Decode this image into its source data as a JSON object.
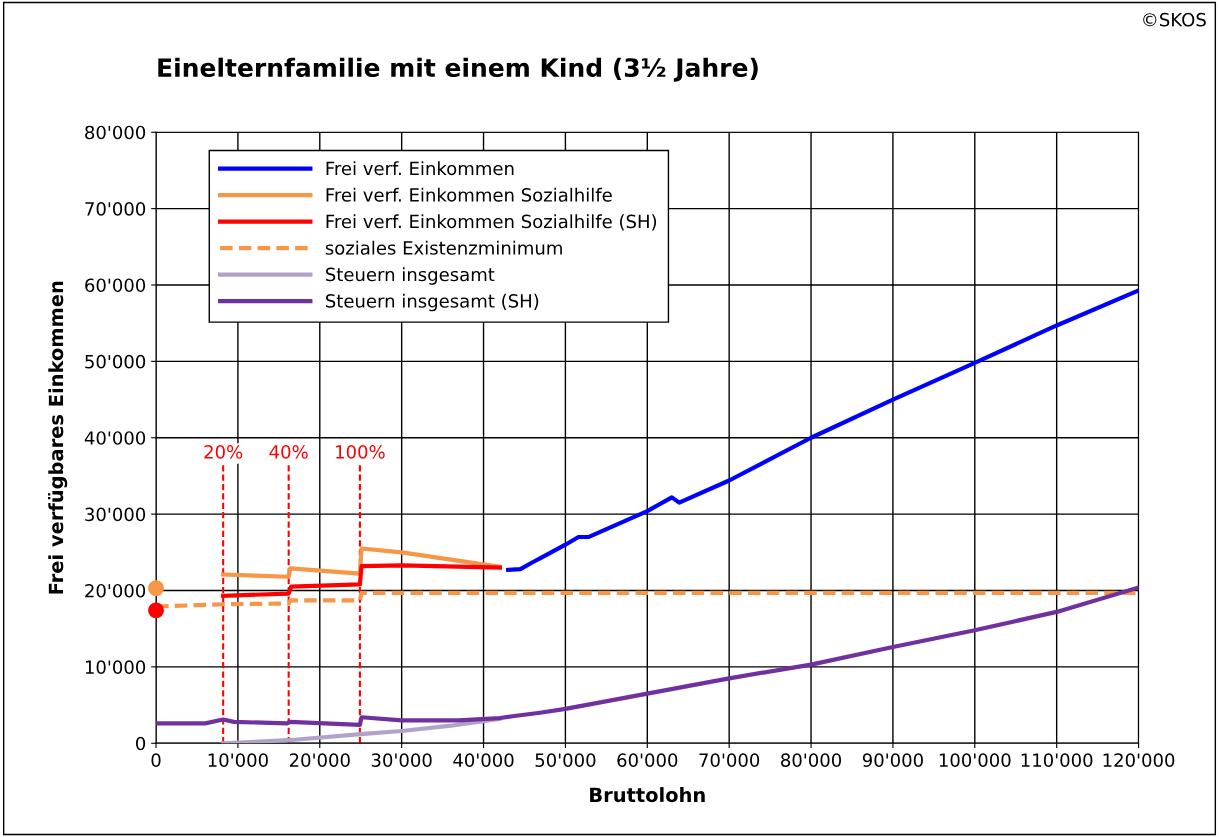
{
  "chart_data": {
    "type": "line",
    "title": "Einelternfamilie mit einem Kind (3½ Jahre)",
    "xlabel": "Bruttolohn",
    "ylabel": "Frei verfügbares Einkommen",
    "annotations": [
      "©SKOS",
      "20%",
      "40%",
      "100%"
    ],
    "xlim": [
      0,
      120000
    ],
    "ylim": [
      0,
      80000
    ],
    "xticks": [
      0,
      {
        "value": 10000,
        "label": "10'000"
      },
      {
        "value": 20000,
        "label": "20'000"
      },
      {
        "value": 30000,
        "label": "30'000"
      },
      {
        "value": 40000,
        "label": "40'000"
      },
      {
        "value": 50000,
        "label": "50'000"
      },
      {
        "value": 60000,
        "label": "60'000"
      },
      {
        "value": 70000,
        "label": "70'000"
      },
      {
        "value": 80000,
        "label": "80'000"
      },
      {
        "value": 90000,
        "label": "90'000"
      },
      {
        "value": 100000,
        "label": "100'000"
      },
      {
        "value": 110000,
        "label": "110'000"
      },
      {
        "value": 120000,
        "label": "120'000"
      }
    ],
    "yticks": [
      0,
      {
        "value": 10000,
        "label": "10'000"
      },
      {
        "value": 20000,
        "label": "20'000"
      },
      {
        "value": 30000,
        "label": "30'000"
      },
      {
        "value": 40000,
        "label": "40'000"
      },
      {
        "value": 50000,
        "label": "50'000"
      },
      {
        "value": 60000,
        "label": "60'000"
      },
      {
        "value": 70000,
        "label": "70'000"
      },
      {
        "value": 80000,
        "label": "80'000"
      }
    ],
    "grid": true,
    "legend": "top left",
    "series": [
      {
        "name": "Frei verf. Einkommen",
        "color": "#0000ff",
        "x": [
          43000,
          44500,
          46000,
          46900,
          50000,
          51600,
          52800,
          60000,
          63000,
          63900,
          70000,
          80000,
          90000,
          100000,
          110000,
          120000
        ],
        "values": [
          22700,
          22800,
          23700,
          24200,
          26000,
          27000,
          27000,
          30400,
          32200,
          31500,
          34400,
          40000,
          45000,
          49800,
          54700,
          59300
        ]
      },
      {
        "name": "Frei verf. Einkommen Sozialhilfe",
        "color": "#f79646",
        "x": [
          8200,
          16200,
          16400,
          24900,
          25100,
          30000,
          42000
        ],
        "values": [
          22100,
          21800,
          22900,
          22200,
          25500,
          25000,
          23100
        ]
      },
      {
        "name": "Frei verf. Einkommen Sozialhilfe (SH)",
        "color": "#ff0000",
        "x": [
          8200,
          16200,
          16500,
          24900,
          25100,
          30000,
          42000
        ],
        "values": [
          19300,
          19600,
          20500,
          20800,
          23200,
          23300,
          23000
        ]
      },
      {
        "name": "soziales Existenzminimum",
        "color": "#f79646",
        "line_style": "dashed",
        "x": [
          0,
          8200,
          16200,
          16400,
          24900,
          25100,
          120000
        ],
        "values": [
          17900,
          18200,
          18300,
          18700,
          18700,
          19700,
          19700
        ]
      },
      {
        "name": "Steuern insgesamt",
        "color": "#b3a2c7",
        "x": [
          8200,
          16200,
          25000,
          30000,
          36000,
          40000,
          42000
        ],
        "values": [
          0,
          400,
          1200,
          1600,
          2300,
          2900,
          3200
        ]
      },
      {
        "name": "Steuern insgesamt (SH)",
        "color": "#7030a0",
        "x": [
          0,
          6000,
          8200,
          9500,
          16000,
          16300,
          24900,
          25100,
          30000,
          37000,
          42000,
          44000,
          46900,
          50000,
          60000,
          70000,
          80000,
          90000,
          100000,
          110000,
          120000
        ],
        "values": [
          2600,
          2600,
          3100,
          2800,
          2600,
          2800,
          2400,
          3400,
          3000,
          3000,
          3300,
          3600,
          4000,
          4500,
          6500,
          8500,
          10300,
          12600,
          14800,
          17200,
          20400
        ]
      },
      {
        "type": "scatter",
        "color": "#f79646",
        "marker": "circle",
        "x": [
          0
        ],
        "values": [
          20300
        ]
      },
      {
        "type": "scatter",
        "color": "#ff0000",
        "marker": "circle",
        "x": [
          0
        ],
        "values": [
          17400
        ]
      }
    ],
    "ref_lines": [
      {
        "axis": "x",
        "value": 8200,
        "color": "#ff0000",
        "line_style": "dashed"
      },
      {
        "axis": "x",
        "value": 16200,
        "color": "#ff0000",
        "line_style": "dashed"
      },
      {
        "axis": "x",
        "value": 24900,
        "color": "#ff0000",
        "line_style": "dashed"
      }
    ]
  }
}
